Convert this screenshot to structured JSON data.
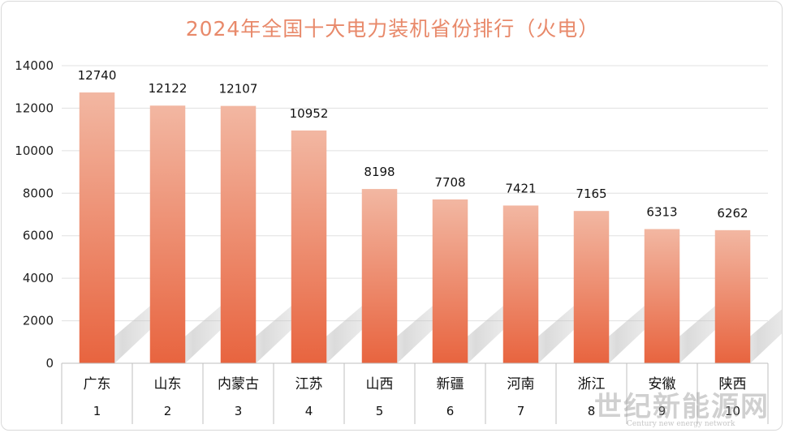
{
  "chart_data": {
    "type": "bar",
    "title": "2024年全国十大电力装机省份排行（火电）",
    "xlabel": "",
    "ylabel": "",
    "categories": [
      "广东",
      "山东",
      "内蒙古",
      "江苏",
      "山西",
      "新疆",
      "河南",
      "浙江",
      "安徽",
      "陕西"
    ],
    "ranks": [
      "1",
      "2",
      "3",
      "4",
      "5",
      "6",
      "7",
      "8",
      "9",
      "10"
    ],
    "values": [
      12740,
      12122,
      12107,
      10952,
      8198,
      7708,
      7421,
      7165,
      6313,
      6262
    ],
    "ylim": [
      0,
      14000
    ],
    "yticks": [
      0,
      2000,
      4000,
      6000,
      8000,
      10000,
      12000,
      14000
    ],
    "grid": true,
    "legend": "none",
    "colors": {
      "bar_top": "#f2b7a2",
      "bar_bottom": "#e8643f",
      "title": "#e8896a",
      "grid": "#e0e0e0"
    }
  },
  "watermark": {
    "main": "世纪新能源网",
    "sub": "Century new energy network"
  }
}
